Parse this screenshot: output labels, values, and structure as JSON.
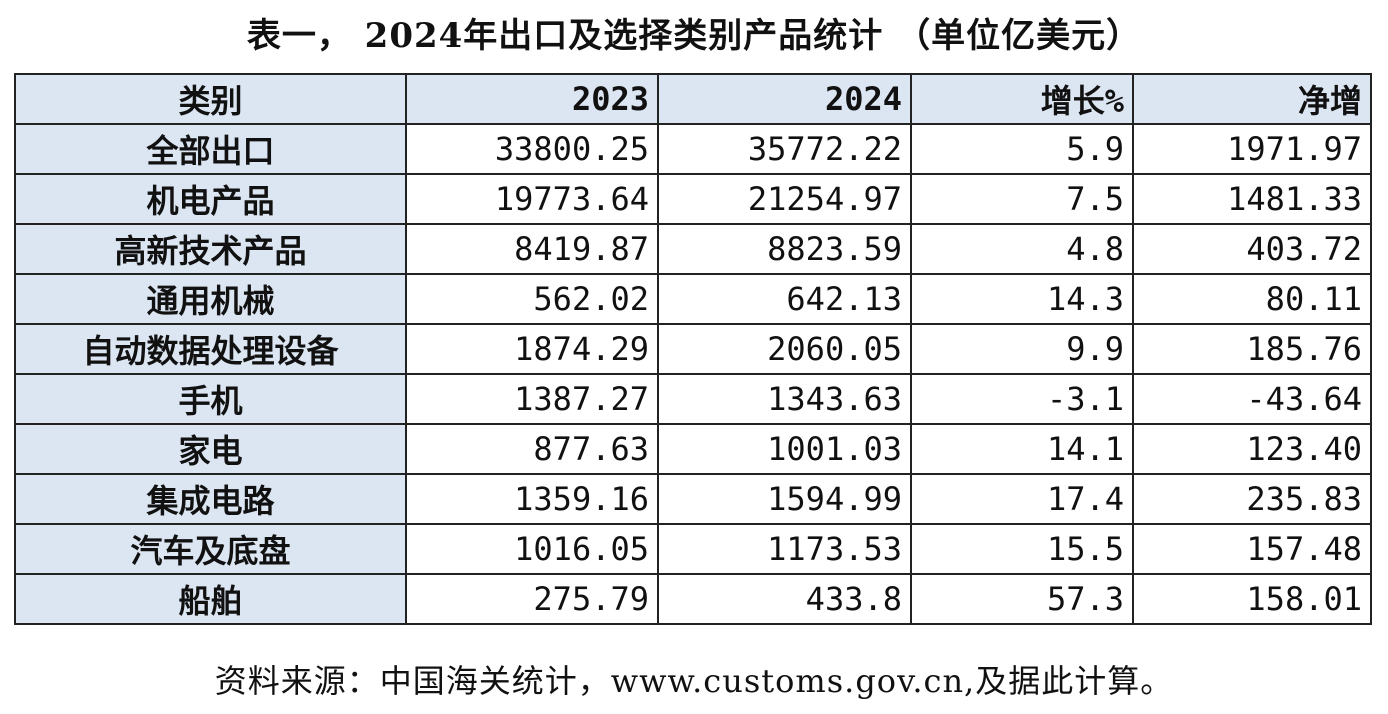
{
  "title": "表一， 2024年出口及选择类别产品统计 （单位亿美元）",
  "table": {
    "header": [
      "类别",
      "2023",
      "2024",
      "增长%",
      "净增"
    ],
    "rows": [
      [
        "全部出口",
        "33800.25",
        "35772.22",
        "5.9",
        "1971.97"
      ],
      [
        "机电产品",
        "19773.64",
        "21254.97",
        "7.5",
        "1481.33"
      ],
      [
        "高新技术产品",
        "8419.87",
        "8823.59",
        "4.8",
        "403.72"
      ],
      [
        "通用机械",
        "562.02",
        "642.13",
        "14.3",
        "80.11"
      ],
      [
        "自动数据处理设备",
        "1874.29",
        "2060.05",
        "9.9",
        "185.76"
      ],
      [
        "手机",
        "1387.27",
        "1343.63",
        "-3.1",
        "-43.64"
      ],
      [
        "家电",
        "877.63",
        "1001.03",
        "14.1",
        "123.40"
      ],
      [
        "集成电路",
        "1359.16",
        "1594.99",
        "17.4",
        "235.83"
      ],
      [
        "汽车及底盘",
        "1016.05",
        "1173.53",
        "15.5",
        "157.48"
      ],
      [
        "船舶",
        "275.79",
        "433.8",
        "57.3",
        "158.01"
      ]
    ]
  },
  "footer": "资料来源：中国海关统计，www.customs.gov.cn,及据此计算。"
}
